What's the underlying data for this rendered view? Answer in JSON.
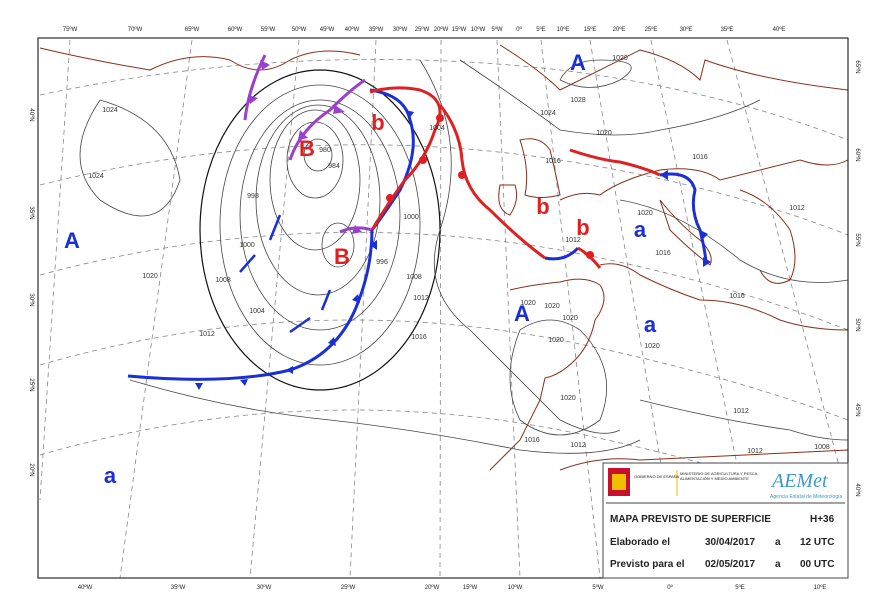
{
  "map": {
    "lon_top": [
      "75ºW",
      "70ºW",
      "65ºW",
      "60ºW",
      "55ºW",
      "50ºW",
      "45ºW",
      "40ºW",
      "35ºW",
      "30ºW",
      "25ºW",
      "20ºW",
      "15ºW",
      "10ºW",
      "5ºW",
      "0º",
      "5ºE",
      "10ºE",
      "15ºE",
      "20ºE",
      "25ºE",
      "30ºE",
      "35ºE",
      "40ºE"
    ],
    "lon_bottom": [
      "40ºW",
      "35ºW",
      "30ºW",
      "25ºW",
      "20ºW",
      "15ºW",
      "10ºW",
      "5ºW",
      "0º",
      "5ºE",
      "10ºE"
    ],
    "lat_left": [
      "40ºN",
      "35ºN",
      "30ºN",
      "25ºN",
      "20ºN"
    ],
    "lat_right": [
      "65ºN",
      "60ºN",
      "55ºN",
      "50ºN",
      "45ºN",
      "40ºN"
    ],
    "centers": [
      "A",
      "A",
      "A",
      "a",
      "a",
      "a",
      "B",
      "B",
      "b",
      "b",
      "b"
    ],
    "isobars": [
      "1020",
      "1028",
      "1024",
      "1024",
      "1020",
      "1016",
      "1016",
      "1012",
      "1020",
      "1016",
      "1012",
      "1016",
      "1012",
      "1012",
      "1008",
      "1020",
      "1000",
      "1008",
      "1004",
      "1012",
      "998",
      "980",
      "984",
      "996",
      "1004",
      "1000",
      "1008",
      "1012",
      "1016",
      "1020",
      "1020",
      "1020",
      "1020",
      "1020",
      "1016",
      "1012",
      "1020",
      "1024"
    ]
  },
  "legend": {
    "gov": "GOBIERNO DE ESPAÑA",
    "ministry": "MINISTERIO DE AGRICULTURA Y PESCA, ALIMENTACIÓN Y MEDIO AMBIENTE",
    "logo": "AEMet",
    "agency": "Agencia Estatal de Meteorología",
    "title": "MAPA PREVISTO DE SUPERFICIE",
    "step": "H+36",
    "made_label": "Elaborado el",
    "made_date": "30/04/2017",
    "made_at": "a",
    "made_time": "12 UTC",
    "valid_label": "Previsto para el",
    "valid_date": "02/05/2017",
    "valid_at": "a",
    "valid_time": "00 UTC"
  }
}
